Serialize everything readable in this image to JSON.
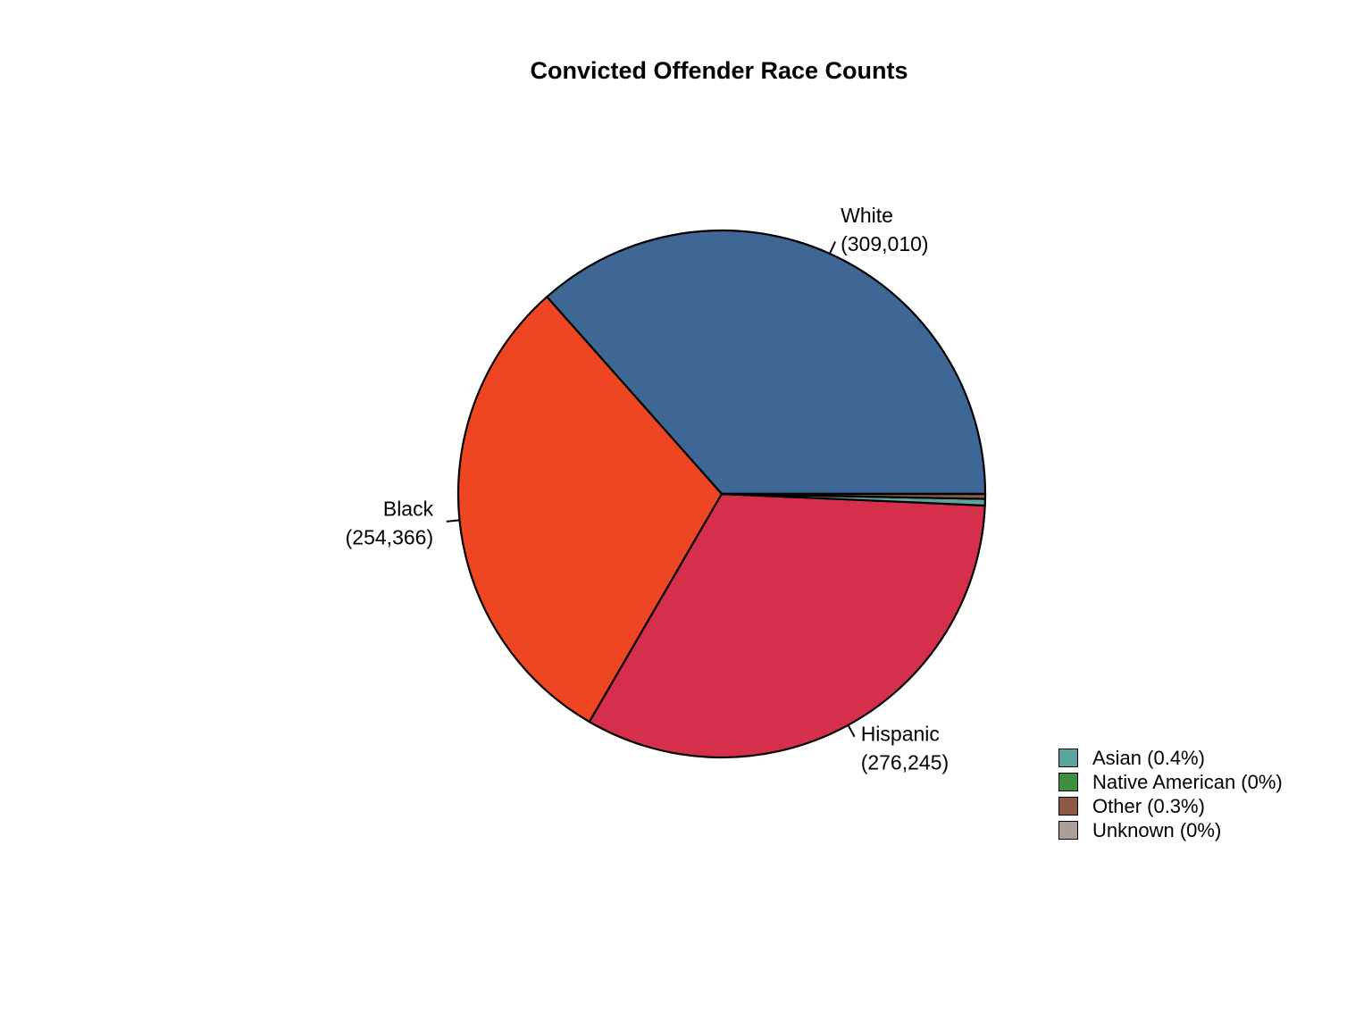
{
  "chart_data": {
    "type": "pie",
    "title": "Convicted Offender Race Counts",
    "direction": "counterclockwise",
    "start_angle_deg": 0,
    "slices": [
      {
        "label": "White",
        "value": 309010,
        "display_count": "309,010",
        "color": "#3E6795",
        "label_outside": true
      },
      {
        "label": "Black",
        "value": 254366,
        "display_count": "254,366",
        "color": "#EE4623",
        "label_outside": true
      },
      {
        "label": "Hispanic",
        "value": 276245,
        "display_count": "276,245",
        "color": "#D62F4B",
        "label_outside": true
      },
      {
        "label": "Asian",
        "percent": 0.4,
        "color": "#5CA49E",
        "label_outside": false
      },
      {
        "label": "Native American",
        "percent": 0,
        "color": "#3D8E3D",
        "label_outside": false
      },
      {
        "label": "Other",
        "percent": 0.3,
        "color": "#8B5B45",
        "label_outside": false
      },
      {
        "label": "Unknown",
        "percent": 0,
        "color": "#AB9F98",
        "label_outside": false
      }
    ],
    "legend": {
      "position": "right-bottom",
      "items": [
        {
          "label": "Asian (0.4%)",
          "color": "#5CA49E"
        },
        {
          "label": "Native American (0%)",
          "color": "#3D8E3D"
        },
        {
          "label": "Other (0.3%)",
          "color": "#8B5B45"
        },
        {
          "label": "Unknown (0%)",
          "color": "#AB9F98"
        }
      ]
    }
  }
}
